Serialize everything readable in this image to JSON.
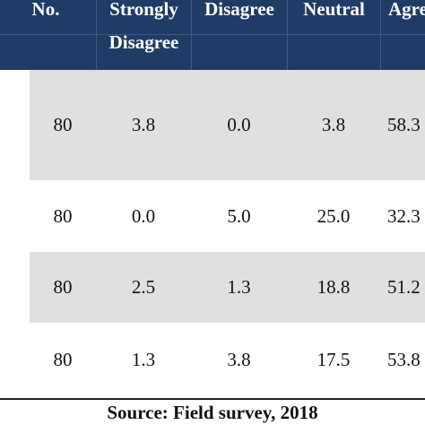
{
  "table": {
    "headers": [
      {
        "line1": "No.",
        "line2": ""
      },
      {
        "line1": "Strongly",
        "line2": "Disagree"
      },
      {
        "line1": "Disagree",
        "line2": ""
      },
      {
        "line1": "Neutral",
        "line2": ""
      },
      {
        "line1": "Agre",
        "line2": ""
      }
    ],
    "rows": [
      {
        "no": "80",
        "strongly_disagree": "3.8",
        "disagree": "0.0",
        "neutral": "3.8",
        "agree": "58.3"
      },
      {
        "no": "80",
        "strongly_disagree": "0.0",
        "disagree": "5.0",
        "neutral": "25.0",
        "agree": "32.3"
      },
      {
        "no": "80",
        "strongly_disagree": "2.5",
        "disagree": "1.3",
        "neutral": "18.8",
        "agree": "51.2"
      },
      {
        "no": "80",
        "strongly_disagree": "1.3",
        "disagree": "3.8",
        "neutral": "17.5",
        "agree": "53.8"
      }
    ]
  },
  "footer": {
    "source": "Source: Field survey, 2018"
  },
  "colors": {
    "header_bg": "#1f3c66",
    "row_shade": "#e0e0e0"
  }
}
